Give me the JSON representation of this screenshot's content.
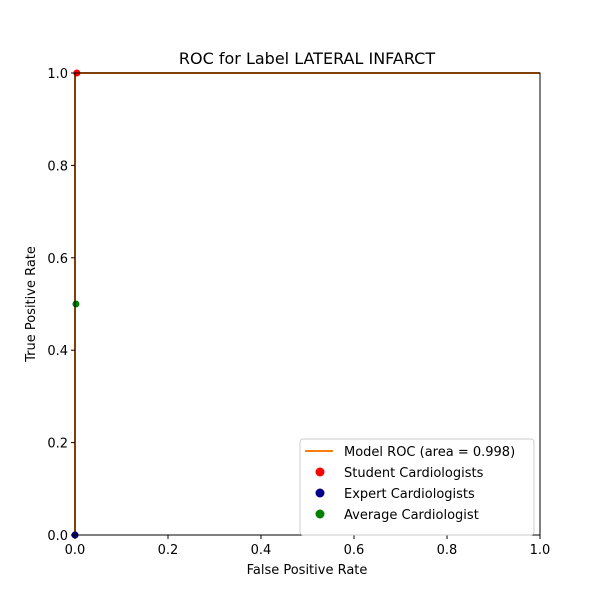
{
  "chart_data": {
    "type": "line",
    "title": "ROC for Label LATERAL INFARCT",
    "xlabel": "False Positive Rate",
    "ylabel": "True Positive Rate",
    "xlim": [
      0.0,
      1.0
    ],
    "ylim": [
      0.0,
      1.0
    ],
    "x_ticks": [
      "0.0",
      "0.2",
      "0.4",
      "0.6",
      "0.8",
      "1.0"
    ],
    "y_ticks": [
      "0.0",
      "0.2",
      "0.4",
      "0.6",
      "0.8",
      "1.0"
    ],
    "grid": false,
    "legend_position": "bottom-right",
    "series": [
      {
        "name": "Model ROC (area = 0.998)",
        "kind": "line",
        "color": "#ff7f0e",
        "x": [
          0.0,
          0.0,
          0.0,
          0.004,
          0.004,
          1.0
        ],
        "y": [
          0.0,
          0.5,
          1.0,
          1.0,
          1.0,
          1.0
        ]
      },
      {
        "name": "Student Cardiologists",
        "kind": "scatter",
        "color": "#ff0000",
        "x": [
          0.0,
          0.004
        ],
        "y": [
          0.0,
          1.0
        ]
      },
      {
        "name": "Expert Cardiologists",
        "kind": "scatter",
        "color": "#00008b",
        "x": [
          0.0
        ],
        "y": [
          0.0
        ]
      },
      {
        "name": "Average Cardiologist",
        "kind": "scatter",
        "color": "#008000",
        "x": [
          0.002
        ],
        "y": [
          0.5
        ]
      }
    ]
  }
}
